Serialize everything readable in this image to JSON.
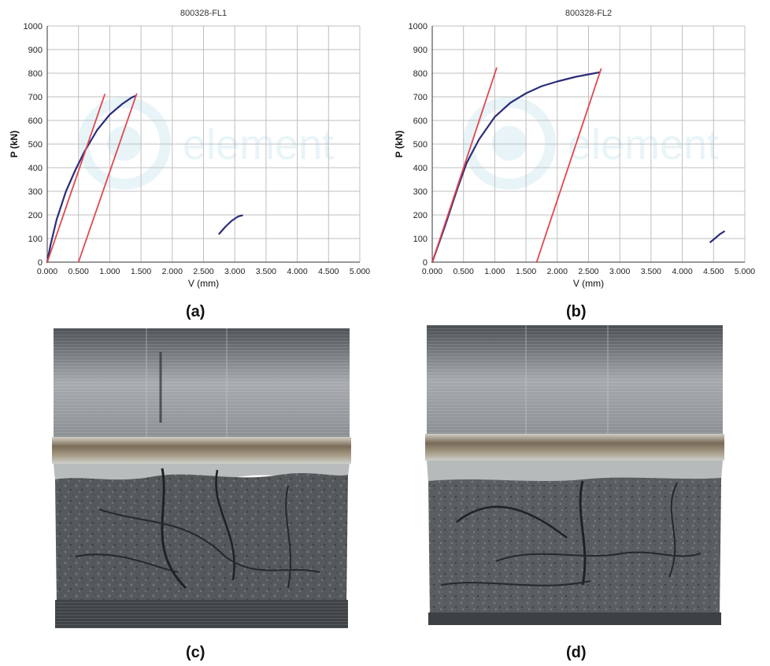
{
  "chart_data": [
    {
      "type": "line",
      "title": "800328-FL1",
      "xlabel": "V (mm)",
      "ylabel": "P (kN)",
      "xlim": [
        0,
        5
      ],
      "ylim": [
        0,
        1000
      ],
      "grid": true,
      "x_ticks": [
        "0.000",
        "0.500",
        "1.000",
        "1.500",
        "2.000",
        "2.500",
        "3.000",
        "3.500",
        "4.000",
        "4.500",
        "5.000"
      ],
      "y_ticks": [
        "0",
        "100",
        "200",
        "300",
        "400",
        "500",
        "600",
        "700",
        "800",
        "900",
        "1000"
      ],
      "watermark": "element",
      "series": [
        {
          "color": "#2b2d7a",
          "x": [
            0,
            0.05,
            0.15,
            0.3,
            0.45,
            0.6,
            0.8,
            1.0,
            1.2,
            1.35,
            1.4
          ],
          "y": [
            0,
            70,
            180,
            300,
            390,
            470,
            560,
            625,
            670,
            697,
            703
          ]
        },
        {
          "color": "#2b2d7a",
          "x": [
            2.75,
            2.85,
            2.95,
            3.05,
            3.12
          ],
          "y": [
            120,
            150,
            175,
            193,
            198
          ]
        },
        {
          "color": "#e0484f",
          "x": [
            0,
            0.92
          ],
          "y": [
            0,
            710
          ]
        },
        {
          "color": "#e0484f",
          "x": [
            0.5,
            1.43
          ],
          "y": [
            0,
            712
          ]
        }
      ]
    },
    {
      "type": "line",
      "title": "800328-FL2",
      "xlabel": "V (mm)",
      "ylabel": "P (kN)",
      "xlim": [
        0,
        5
      ],
      "ylim": [
        0,
        1000
      ],
      "grid": true,
      "x_ticks": [
        "0.000",
        "0.500",
        "1.000",
        "1.500",
        "2.000",
        "2.500",
        "3.000",
        "3.500",
        "4.000",
        "4.500",
        "5.000"
      ],
      "y_ticks": [
        "0",
        "100",
        "200",
        "300",
        "400",
        "500",
        "600",
        "700",
        "800",
        "900",
        "1000"
      ],
      "watermark": "element",
      "series": [
        {
          "color": "#2b2d7a",
          "x": [
            0,
            0.2,
            0.4,
            0.55,
            0.75,
            1.0,
            1.25,
            1.5,
            1.75,
            2.0,
            2.3,
            2.6,
            2.68
          ],
          "y": [
            0,
            150,
            310,
            420,
            520,
            615,
            675,
            715,
            745,
            765,
            785,
            800,
            804
          ]
        },
        {
          "color": "#2b2d7a",
          "x": [
            4.45,
            4.52,
            4.6,
            4.67
          ],
          "y": [
            85,
            100,
            118,
            130
          ]
        },
        {
          "color": "#e0484f",
          "x": [
            0,
            1.03
          ],
          "y": [
            0,
            822
          ]
        },
        {
          "color": "#e0484f",
          "x": [
            1.67,
            2.7
          ],
          "y": [
            0,
            818
          ]
        }
      ]
    }
  ],
  "panels": {
    "a": "(a)",
    "b": "(b)",
    "c": "(c)",
    "d": "(d)"
  },
  "colors": {
    "grid": "#bfbfbf",
    "axis": "#333333",
    "curve": "#2b2d7a",
    "fit_line": "#e0484f",
    "watermark": "#d6ecf3"
  }
}
